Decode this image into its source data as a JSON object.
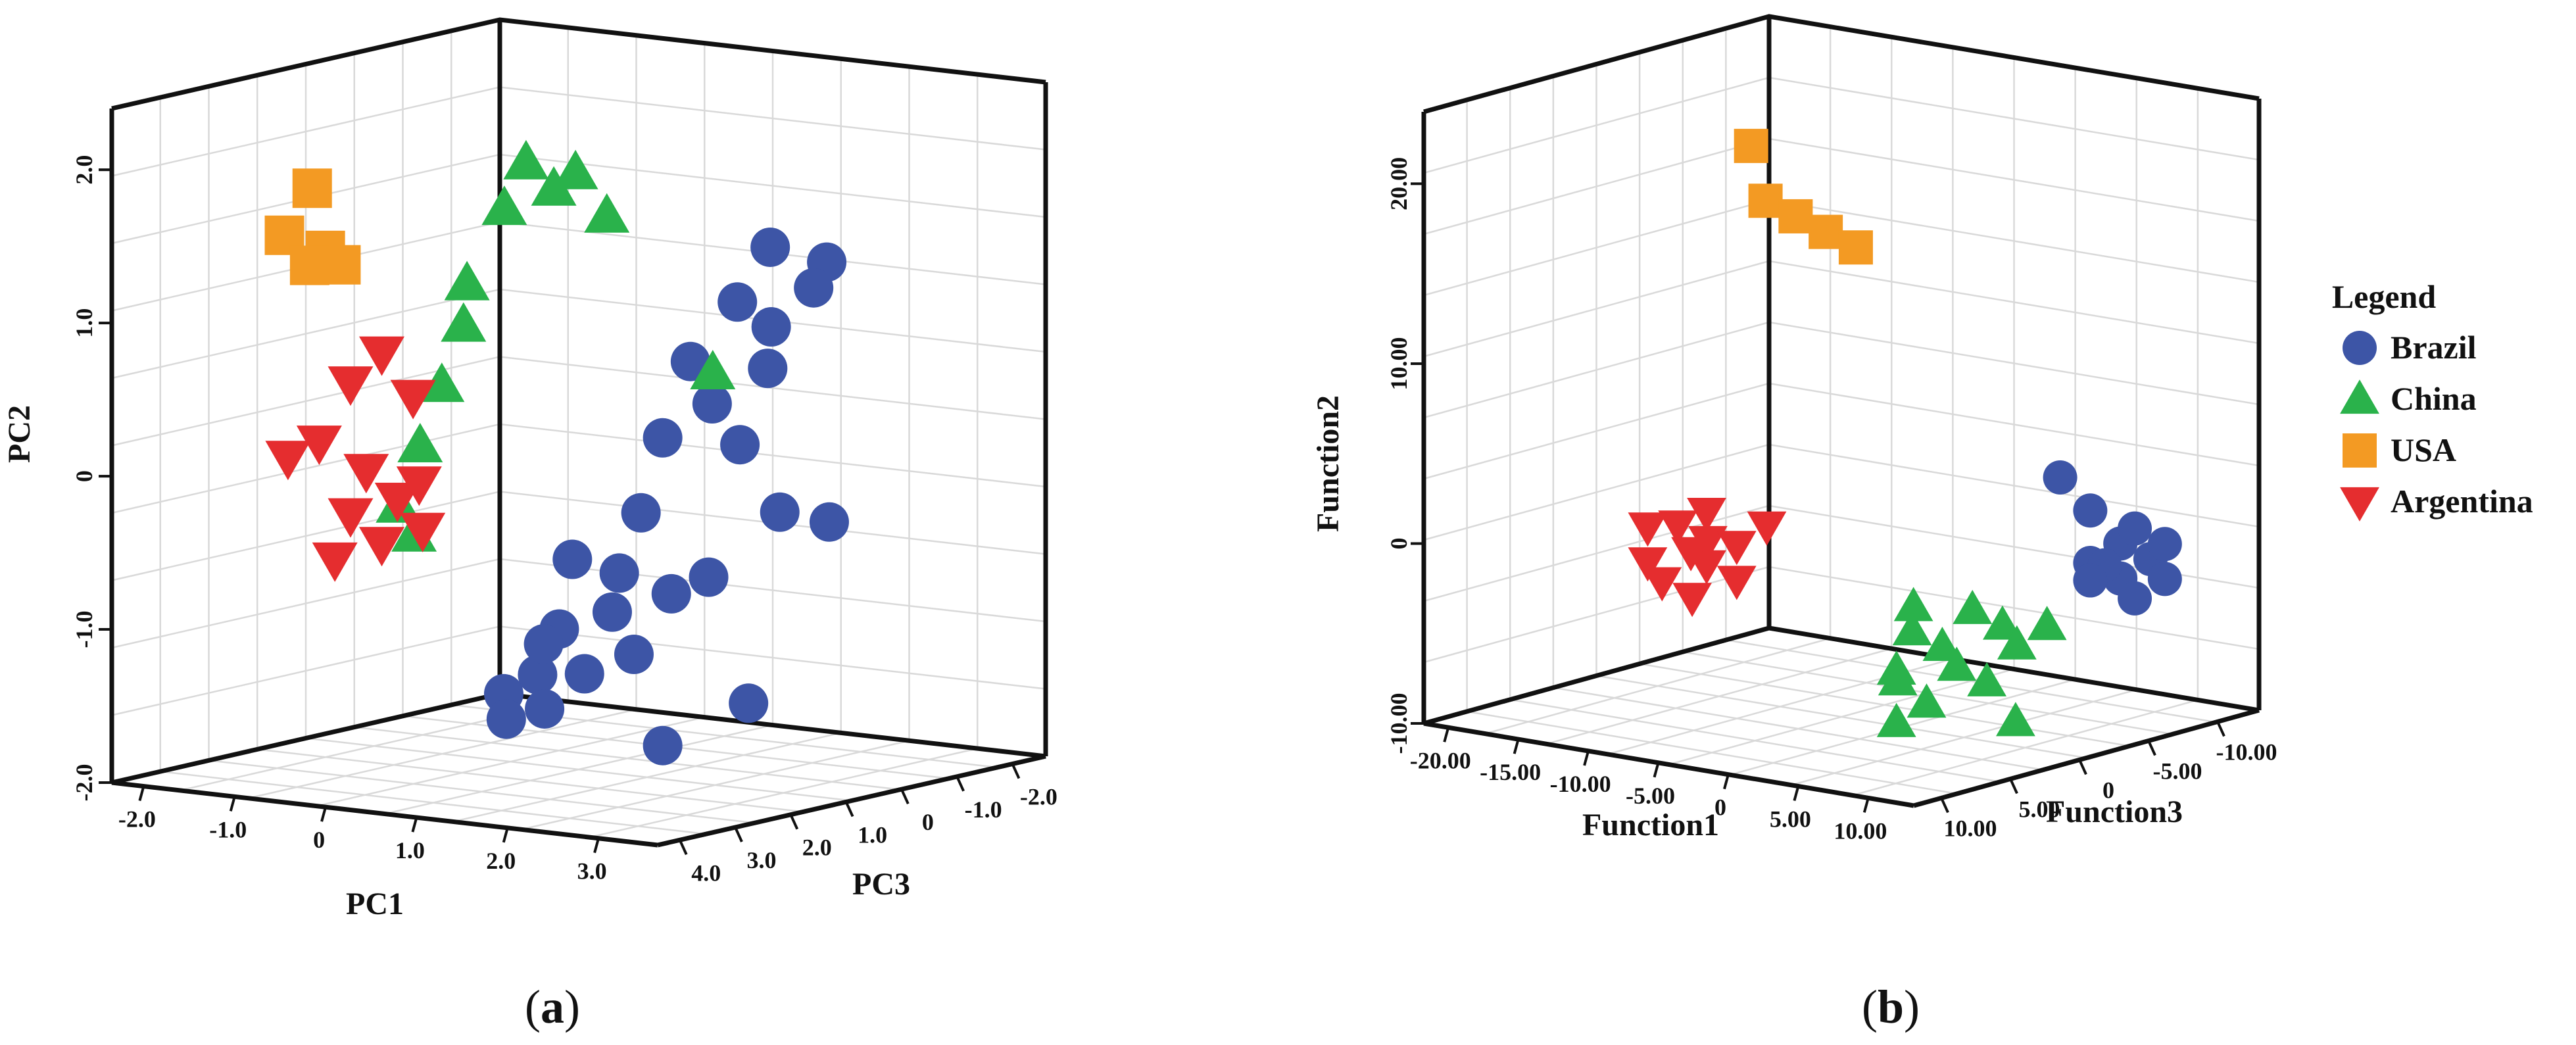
{
  "chart_data": [
    {
      "type": "scatter",
      "panel_label": "a",
      "xlabel": "PC1",
      "ylabel": "PC2",
      "zlabel": "PC3",
      "x_ticks": [
        "-2.0",
        "-1.0",
        "0",
        "1.0",
        "2.0",
        "3.0"
      ],
      "y_ticks": [
        "-2.0",
        "-1.0",
        "0",
        "1.0",
        "2.0"
      ],
      "z_ticks": [
        "4.0",
        "3.0",
        "2.0",
        "1.0",
        "0",
        "-1.0",
        "-2.0"
      ],
      "grid": true,
      "series": [
        {
          "name": "Brazil",
          "marker": "circle",
          "color": "#3d55a6",
          "points": [
            [
              1.4,
              1.5,
              -0.5
            ],
            [
              1.8,
              1.4,
              -0.8
            ],
            [
              1.5,
              1.2,
              0.2
            ],
            [
              1.6,
              1.0,
              -0.2
            ],
            [
              1.2,
              0.8,
              0.5
            ],
            [
              1.3,
              0.5,
              0.3
            ],
            [
              1.1,
              0.3,
              0.8
            ],
            [
              1.4,
              0.2,
              0.0
            ],
            [
              1.0,
              -0.2,
              1.0
            ],
            [
              1.5,
              -0.3,
              -0.5
            ],
            [
              0.6,
              -0.5,
              1.5
            ],
            [
              0.9,
              -0.6,
              1.2
            ],
            [
              0.7,
              -0.9,
              1.0
            ],
            [
              0.4,
              -1.0,
              1.4
            ],
            [
              0.3,
              -1.3,
              1.6
            ],
            [
              0.5,
              -1.5,
              1.8
            ],
            [
              0.2,
              -1.4,
              2.0
            ],
            [
              0.8,
              -1.2,
              0.8
            ],
            [
              1.0,
              -0.8,
              0.5
            ],
            [
              1.2,
              -0.7,
              0.2
            ],
            [
              1.3,
              -1.6,
              -0.3
            ],
            [
              1.1,
              -1.8,
              0.8
            ],
            [
              0.1,
              -1.6,
              1.8
            ],
            [
              1.6,
              1.2,
              -0.9
            ],
            [
              1.5,
              0.7,
              -0.3
            ],
            [
              1.7,
              -0.4,
              -1.0
            ],
            [
              0.6,
              -1.3,
              1.3
            ],
            [
              0.3,
              -1.1,
              1.5
            ]
          ]
        },
        {
          "name": "China",
          "marker": "triangle-up",
          "color": "#2ab24b",
          "points": [
            [
              -0.2,
              2.1,
              1.0
            ],
            [
              0.0,
              2.0,
              0.5
            ],
            [
              -0.3,
              1.8,
              1.2
            ],
            [
              0.2,
              1.7,
              0.3
            ],
            [
              -0.5,
              1.3,
              1.5
            ],
            [
              -0.6,
              1.0,
              1.4
            ],
            [
              -0.7,
              0.6,
              1.6
            ],
            [
              -0.8,
              0.2,
              1.8
            ],
            [
              -0.9,
              -0.2,
              2.0
            ],
            [
              -0.8,
              -0.4,
              1.9
            ],
            [
              0.8,
              0.6,
              -0.5
            ],
            [
              -0.1,
              1.9,
              0.7
            ]
          ]
        },
        {
          "name": "USA",
          "marker": "square",
          "color": "#f39a23",
          "points": [
            [
              -1.8,
              1.9,
              2.0
            ],
            [
              -1.9,
              1.6,
              2.3
            ],
            [
              -1.6,
              1.5,
              2.1
            ],
            [
              -1.5,
              1.4,
              2.0
            ],
            [
              -1.7,
              1.4,
              2.2
            ]
          ]
        },
        {
          "name": "Argentina",
          "marker": "triangle-down",
          "color": "#e52d2f",
          "points": [
            [
              -1.2,
              0.8,
              1.8
            ],
            [
              -1.4,
              0.6,
              2.0
            ],
            [
              -1.0,
              0.5,
              1.6
            ],
            [
              -1.6,
              0.2,
              2.2
            ],
            [
              -1.8,
              0.1,
              2.4
            ],
            [
              -1.3,
              0.0,
              1.9
            ],
            [
              -1.1,
              -0.2,
              1.7
            ],
            [
              -1.4,
              -0.3,
              2.0
            ],
            [
              -1.2,
              -0.5,
              1.8
            ],
            [
              -0.9,
              -0.4,
              1.6
            ],
            [
              -1.0,
              -0.1,
              1.5
            ],
            [
              -1.5,
              -0.6,
              2.1
            ]
          ]
        }
      ]
    },
    {
      "type": "scatter",
      "panel_label": "b",
      "xlabel": "Function1",
      "ylabel": "Function2",
      "zlabel": "Function3",
      "x_ticks": [
        "-20.00",
        "-15.00",
        "-10.00",
        "-5.00",
        "0",
        "5.00",
        "10.00"
      ],
      "y_ticks": [
        "-10.00",
        "0",
        "10.00",
        "20.00"
      ],
      "z_ticks": [
        "10.00",
        "5.00",
        "0",
        "-5.00",
        "-10.00"
      ],
      "grid": true,
      "series": [
        {
          "name": "Brazil",
          "marker": "circle",
          "color": "#3d55a6",
          "points": [
            [
              9,
              3,
              -3
            ],
            [
              10,
              1,
              -4
            ],
            [
              11,
              0,
              -5
            ],
            [
              10,
              -1,
              -4
            ],
            [
              9,
              0,
              -3
            ],
            [
              12,
              1,
              -5
            ],
            [
              11,
              2,
              -4
            ],
            [
              10,
              0,
              -3
            ],
            [
              9,
              -1,
              -3
            ],
            [
              12,
              -1,
              -5
            ],
            [
              11,
              -2,
              -4
            ],
            [
              8,
              5,
              -2
            ]
          ]
        },
        {
          "name": "China",
          "marker": "triangle-up",
          "color": "#2ab24b",
          "points": [
            [
              0,
              -3,
              0
            ],
            [
              1,
              -4,
              1
            ],
            [
              2,
              -5,
              0
            ],
            [
              3,
              -3,
              -1
            ],
            [
              1,
              -6,
              2
            ],
            [
              0,
              -7,
              1
            ],
            [
              4,
              -4,
              -2
            ],
            [
              2,
              -8,
              1
            ],
            [
              3,
              -6,
              0
            ],
            [
              5,
              -5,
              -2
            ],
            [
              6,
              -4,
              -3
            ],
            [
              4,
              -7,
              -1
            ],
            [
              1,
              -9,
              2
            ],
            [
              6,
              -9,
              -1
            ]
          ]
        },
        {
          "name": "USA",
          "marker": "square",
          "color": "#f39a23",
          "points": [
            [
              -8,
              23,
              3
            ],
            [
              -7,
              20,
              3
            ],
            [
              -6,
              19,
              2
            ],
            [
              -5,
              18,
              1
            ],
            [
              -4,
              17,
              0
            ]
          ]
        },
        {
          "name": "Argentina",
          "marker": "triangle-down",
          "color": "#e52d2f",
          "points": [
            [
              -12,
              1,
              4
            ],
            [
              -11,
              0,
              3
            ],
            [
              -10,
              2,
              4
            ],
            [
              -13,
              -1,
              5
            ],
            [
              -9,
              0,
              3
            ],
            [
              -12,
              -2,
              5
            ],
            [
              -10,
              -1,
              4
            ],
            [
              -8,
              1,
              2
            ],
            [
              -11,
              -3,
              4
            ],
            [
              -9,
              -2,
              3
            ],
            [
              -13,
              1,
              5
            ],
            [
              -10,
              0,
              5
            ]
          ]
        }
      ]
    }
  ],
  "legend": {
    "title": "Legend",
    "items": [
      {
        "label": "Brazil",
        "marker": "circle",
        "color": "#3d55a6"
      },
      {
        "label": "China",
        "marker": "triangle-up",
        "color": "#2ab24b"
      },
      {
        "label": "USA",
        "marker": "square",
        "color": "#f39a23"
      },
      {
        "label": "Argentina",
        "marker": "triangle-down",
        "color": "#e52d2f"
      }
    ]
  }
}
